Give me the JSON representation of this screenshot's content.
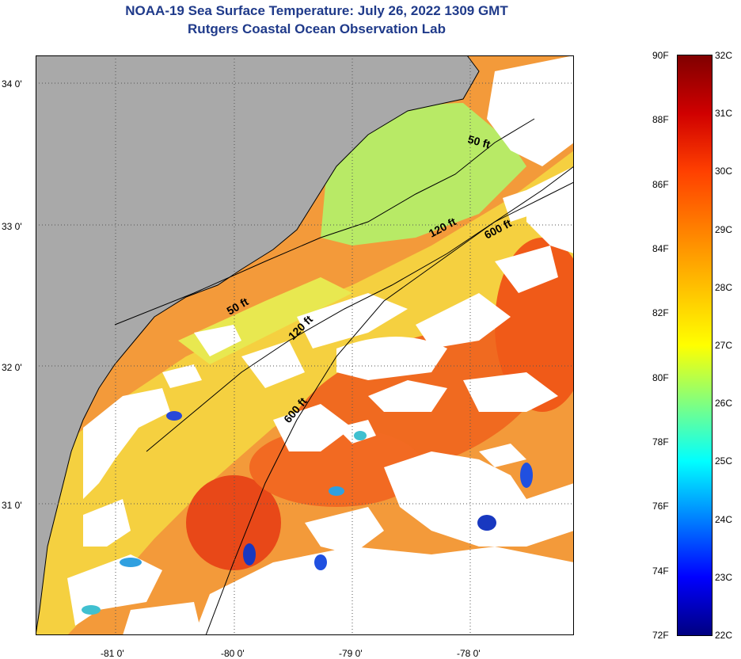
{
  "title": {
    "line1": "NOAA-19 Sea Surface Temperature:  July 26, 2022 1309 GMT",
    "line2": "Rutgers Coastal Ocean Observation Lab"
  },
  "map": {
    "latitude_labels": [
      "34 0'",
      "33 0'",
      "32 0'",
      "31 0'"
    ],
    "longitude_labels": [
      "-81 0'",
      "-80 0'",
      "-79 0'",
      "-78 0'"
    ],
    "isobath_labels": [
      "50 ft",
      "120 ft",
      "600 ft",
      "50 ft",
      "120 ft",
      "600 ft"
    ],
    "colors": {
      "land": "#a9a9a9",
      "cloud": "#ffffff",
      "sst_warm": "#f07020",
      "sst_mid": "#f5c030",
      "sst_cool": "#a8e85a"
    }
  },
  "color_scale": {
    "fahrenheit_labels": [
      "90F",
      "88F",
      "86F",
      "84F",
      "82F",
      "80F",
      "78F",
      "76F",
      "74F",
      "72F"
    ],
    "celsius_labels": [
      "32C",
      "31C",
      "30C",
      "29C",
      "28C",
      "27C",
      "26C",
      "25C",
      "24C",
      "23C",
      "22C"
    ],
    "min_f": 72,
    "max_f": 90,
    "min_c": 22,
    "max_c": 32,
    "gradient_colors": [
      "#800000",
      "#d00000",
      "#ff4000",
      "#ff8000",
      "#ffc000",
      "#ffff00",
      "#80ff80",
      "#00ffff",
      "#0080ff",
      "#0000ff",
      "#000080"
    ]
  }
}
